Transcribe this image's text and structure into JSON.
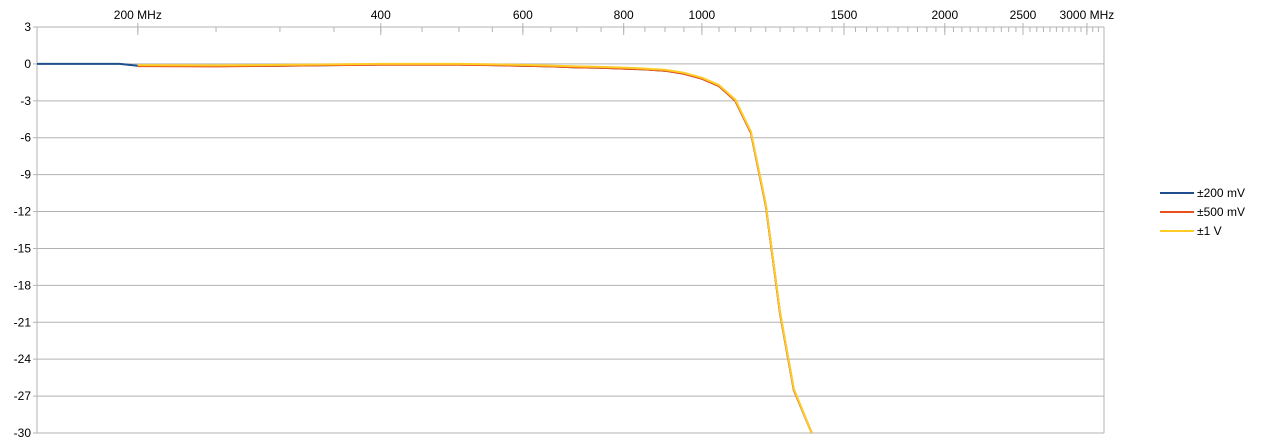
{
  "chart_data": {
    "type": "line",
    "x_scale": "log",
    "x_range": [
      150,
      3150
    ],
    "y_range": [
      -30,
      3
    ],
    "grid": true,
    "legend_position": "right",
    "x_ticks": [
      {
        "value": 200,
        "label": "200 MHz"
      },
      {
        "value": 400,
        "label": "400"
      },
      {
        "value": 600,
        "label": "600"
      },
      {
        "value": 800,
        "label": "800"
      },
      {
        "value": 1000,
        "label": "1000"
      },
      {
        "value": 1500,
        "label": "1500"
      },
      {
        "value": 2000,
        "label": "2000"
      },
      {
        "value": 2500,
        "label": "2500"
      },
      {
        "value": 3000,
        "label": "3000 MHz"
      }
    ],
    "y_ticks": [
      3,
      0,
      -3,
      -6,
      -9,
      -12,
      -15,
      -18,
      -21,
      -24,
      -27,
      -30
    ],
    "series": [
      {
        "name": "±200 mV",
        "color": "#1f4e8c",
        "points": [
          [
            150,
            0
          ],
          [
            175,
            0
          ],
          [
            190,
            0
          ],
          [
            200,
            -0.15
          ],
          [
            250,
            -0.18
          ],
          [
            300,
            -0.15
          ],
          [
            350,
            -0.1
          ],
          [
            400,
            -0.05
          ],
          [
            450,
            -0.05
          ],
          [
            500,
            -0.05
          ],
          [
            550,
            -0.1
          ],
          [
            600,
            -0.15
          ],
          [
            650,
            -0.2
          ],
          [
            700,
            -0.28
          ],
          [
            750,
            -0.32
          ],
          [
            800,
            -0.38
          ],
          [
            850,
            -0.45
          ],
          [
            900,
            -0.55
          ],
          [
            950,
            -0.8
          ],
          [
            1000,
            -1.2
          ],
          [
            1050,
            -1.8
          ],
          [
            1100,
            -3.0
          ],
          [
            1150,
            -5.6
          ],
          [
            1200,
            -11.5
          ],
          [
            1250,
            -20.3
          ],
          [
            1300,
            -26.5
          ],
          [
            1368,
            -30
          ]
        ]
      },
      {
        "name": "±500 mV",
        "color": "#e8501e",
        "points": [
          [
            200,
            -0.18
          ],
          [
            250,
            -0.2
          ],
          [
            300,
            -0.15
          ],
          [
            350,
            -0.1
          ],
          [
            400,
            -0.07
          ],
          [
            450,
            -0.07
          ],
          [
            500,
            -0.07
          ],
          [
            550,
            -0.1
          ],
          [
            600,
            -0.15
          ],
          [
            650,
            -0.2
          ],
          [
            700,
            -0.28
          ],
          [
            750,
            -0.32
          ],
          [
            800,
            -0.38
          ],
          [
            850,
            -0.45
          ],
          [
            900,
            -0.55
          ],
          [
            950,
            -0.8
          ],
          [
            1000,
            -1.2
          ],
          [
            1050,
            -1.8
          ],
          [
            1100,
            -3.0
          ],
          [
            1150,
            -5.6
          ],
          [
            1200,
            -11.5
          ],
          [
            1250,
            -20.3
          ],
          [
            1300,
            -26.5
          ],
          [
            1368,
            -30
          ]
        ]
      },
      {
        "name": "±1 V",
        "color": "#ffcc26",
        "points": [
          [
            200,
            -0.1
          ],
          [
            250,
            -0.12
          ],
          [
            300,
            -0.08
          ],
          [
            350,
            -0.04
          ],
          [
            400,
            0
          ],
          [
            450,
            0
          ],
          [
            500,
            0
          ],
          [
            550,
            -0.04
          ],
          [
            600,
            -0.08
          ],
          [
            650,
            -0.14
          ],
          [
            700,
            -0.2
          ],
          [
            750,
            -0.24
          ],
          [
            800,
            -0.3
          ],
          [
            850,
            -0.38
          ],
          [
            900,
            -0.48
          ],
          [
            950,
            -0.72
          ],
          [
            1000,
            -1.12
          ],
          [
            1050,
            -1.72
          ],
          [
            1100,
            -2.9
          ],
          [
            1150,
            -5.5
          ],
          [
            1200,
            -11.4
          ],
          [
            1250,
            -20.2
          ],
          [
            1300,
            -26.4
          ],
          [
            1368,
            -30
          ]
        ]
      }
    ]
  }
}
